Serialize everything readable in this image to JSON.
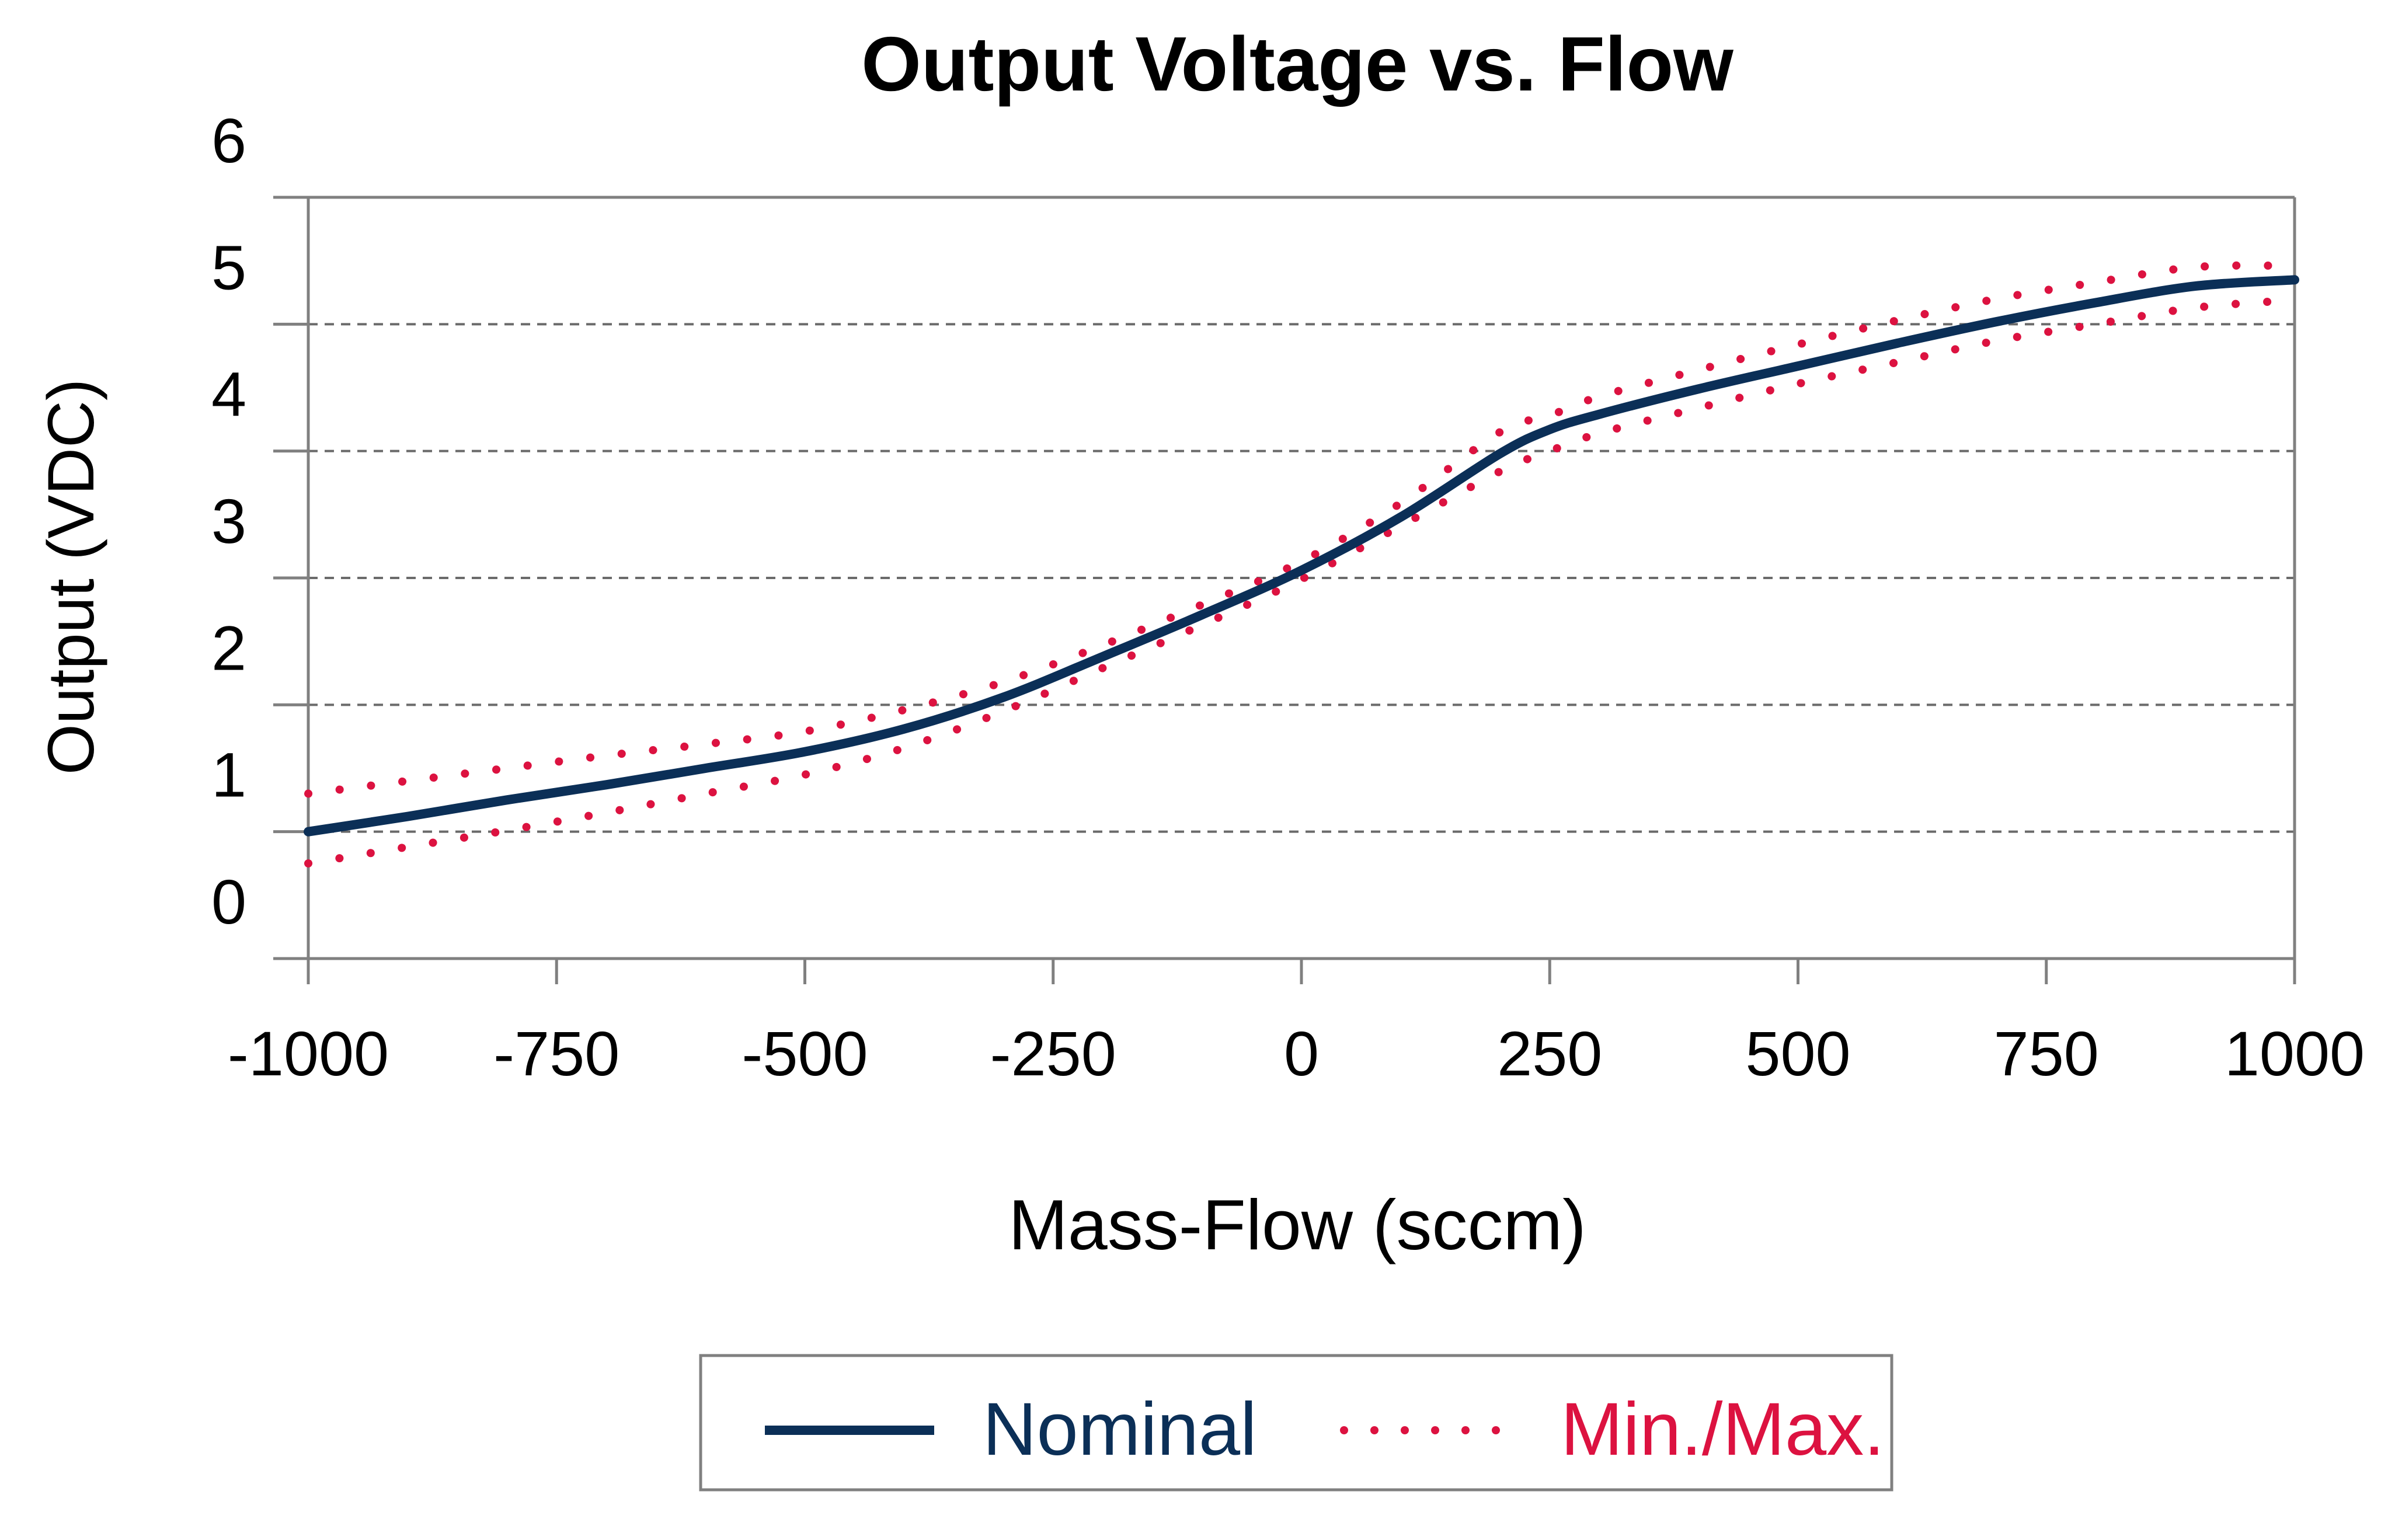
{
  "chart_data": {
    "type": "line",
    "title": "Output Voltage vs. Flow",
    "xlabel": "Mass-Flow (sccm)",
    "ylabel": "Output (VDC)",
    "xlim": [
      -1000,
      1000
    ],
    "ylim": [
      0,
      6
    ],
    "x_ticks": [
      -1000,
      -750,
      -500,
      -250,
      0,
      250,
      500,
      750,
      1000
    ],
    "x_tick_labels": [
      "-1000",
      "-750",
      "-500",
      "-250",
      "0",
      "250",
      "500",
      "750",
      "1000"
    ],
    "y_tick_labels": [
      "0",
      "1",
      "2",
      "3",
      "4",
      "5",
      "6"
    ],
    "grid": "horizontal dashed",
    "legend_position": "bottom-center",
    "colors": {
      "nominal": "#0b2f57",
      "minmax": "#dc1240",
      "grid": "#6a6a6a",
      "axis": "#808080"
    },
    "series": [
      {
        "name": "Nominal",
        "style": "solid",
        "x": [
          -1000,
          -900,
          -800,
          -700,
          -600,
          -500,
          -400,
          -300,
          -200,
          -100,
          0,
          100,
          200,
          250,
          300,
          400,
          500,
          600,
          700,
          800,
          900,
          1000
        ],
        "y": [
          1.0,
          1.12,
          1.25,
          1.37,
          1.5,
          1.63,
          1.81,
          2.06,
          2.38,
          2.71,
          3.06,
          3.48,
          3.98,
          4.17,
          4.29,
          4.49,
          4.67,
          4.85,
          5.02,
          5.17,
          5.3,
          5.35
        ]
      },
      {
        "name": "Min./Max.",
        "style": "dotted",
        "bound": "upper",
        "x": [
          -1000,
          -900,
          -800,
          -700,
          -600,
          -500,
          -400,
          -300,
          -200,
          -100,
          0,
          100,
          200,
          250,
          300,
          400,
          500,
          600,
          700,
          800,
          900,
          1000
        ],
        "y": [
          1.3,
          1.4,
          1.5,
          1.6,
          1.69,
          1.79,
          1.96,
          2.18,
          2.47,
          2.79,
          3.13,
          3.59,
          4.15,
          4.28,
          4.43,
          4.64,
          4.84,
          5.03,
          5.2,
          5.33,
          5.45,
          5.46
        ]
      },
      {
        "name": "Min./Max.",
        "style": "dotted",
        "bound": "lower",
        "x": [
          -1000,
          -900,
          -800,
          -700,
          -600,
          -500,
          -400,
          -300,
          -200,
          -100,
          0,
          100,
          200,
          250,
          300,
          400,
          500,
          600,
          700,
          800,
          900,
          1000
        ],
        "y": [
          0.75,
          0.88,
          1.01,
          1.15,
          1.3,
          1.45,
          1.66,
          1.95,
          2.29,
          2.63,
          2.99,
          3.41,
          3.84,
          4.0,
          4.14,
          4.34,
          4.53,
          4.7,
          4.87,
          5.0,
          5.13,
          5.19
        ]
      }
    ],
    "legend": [
      {
        "label": "Nominal",
        "style": "solid",
        "color": "#0b2f57"
      },
      {
        "label": "Min./Max.",
        "style": "dotted",
        "color": "#dc1240"
      }
    ]
  }
}
